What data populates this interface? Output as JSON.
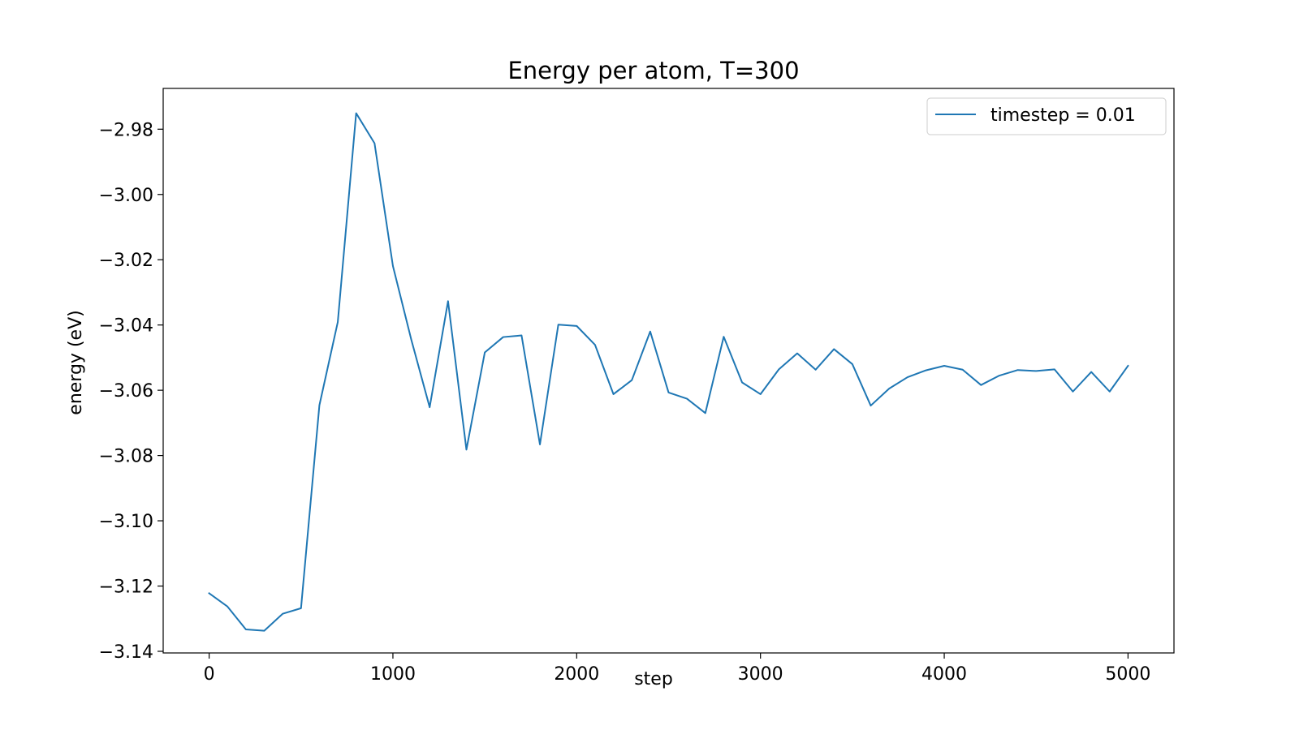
{
  "chart_data": {
    "type": "line",
    "title": "Energy per atom, T=300",
    "xlabel": "step",
    "ylabel": "energy (eV)",
    "xlim": [
      -250,
      5250
    ],
    "ylim": [
      -3.1405,
      -2.9675
    ],
    "xticks": [
      0,
      1000,
      2000,
      3000,
      4000,
      5000
    ],
    "xtick_labels": [
      "0",
      "1000",
      "2000",
      "3000",
      "4000",
      "5000"
    ],
    "yticks": [
      -2.98,
      -3.0,
      -3.02,
      -3.04,
      -3.06,
      -3.08,
      -3.1,
      -3.12,
      -3.14
    ],
    "ytick_labels": [
      "−2.98",
      "−3.00",
      "−3.02",
      "−3.04",
      "−3.06",
      "−3.08",
      "−3.10",
      "−3.12",
      "−3.14"
    ],
    "grid": false,
    "legend_position": "top-right",
    "series": [
      {
        "name": "timestep = 0.01",
        "color": "#1f77b4",
        "x": [
          0,
          100,
          200,
          300,
          400,
          500,
          600,
          700,
          800,
          900,
          1000,
          1100,
          1200,
          1300,
          1400,
          1500,
          1600,
          1700,
          1800,
          1900,
          2000,
          2100,
          2200,
          2300,
          2400,
          2500,
          2600,
          2700,
          2800,
          2900,
          3000,
          3100,
          3200,
          3300,
          3400,
          3500,
          3600,
          3700,
          3800,
          3900,
          4000,
          4100,
          4200,
          4300,
          4400,
          4500,
          4600,
          4700,
          4800,
          4900,
          5000
        ],
        "y": [
          -3.1222,
          -3.1263,
          -3.1333,
          -3.1337,
          -3.1285,
          -3.1268,
          -3.0646,
          -3.0391,
          -2.9751,
          -2.9843,
          -3.0219,
          -3.0445,
          -3.0652,
          -3.0327,
          -3.0782,
          -3.0484,
          -3.0437,
          -3.0432,
          -3.0766,
          -3.0399,
          -3.0403,
          -3.0461,
          -3.0612,
          -3.0569,
          -3.042,
          -3.0607,
          -3.0626,
          -3.067,
          -3.0436,
          -3.0576,
          -3.0612,
          -3.0536,
          -3.0487,
          -3.0537,
          -3.0474,
          -3.052,
          -3.0647,
          -3.0595,
          -3.056,
          -3.0539,
          -3.0525,
          -3.0537,
          -3.0584,
          -3.0555,
          -3.0538,
          -3.0541,
          -3.0536,
          -3.0604,
          -3.0544,
          -3.0604,
          -3.0525
        ]
      }
    ]
  }
}
